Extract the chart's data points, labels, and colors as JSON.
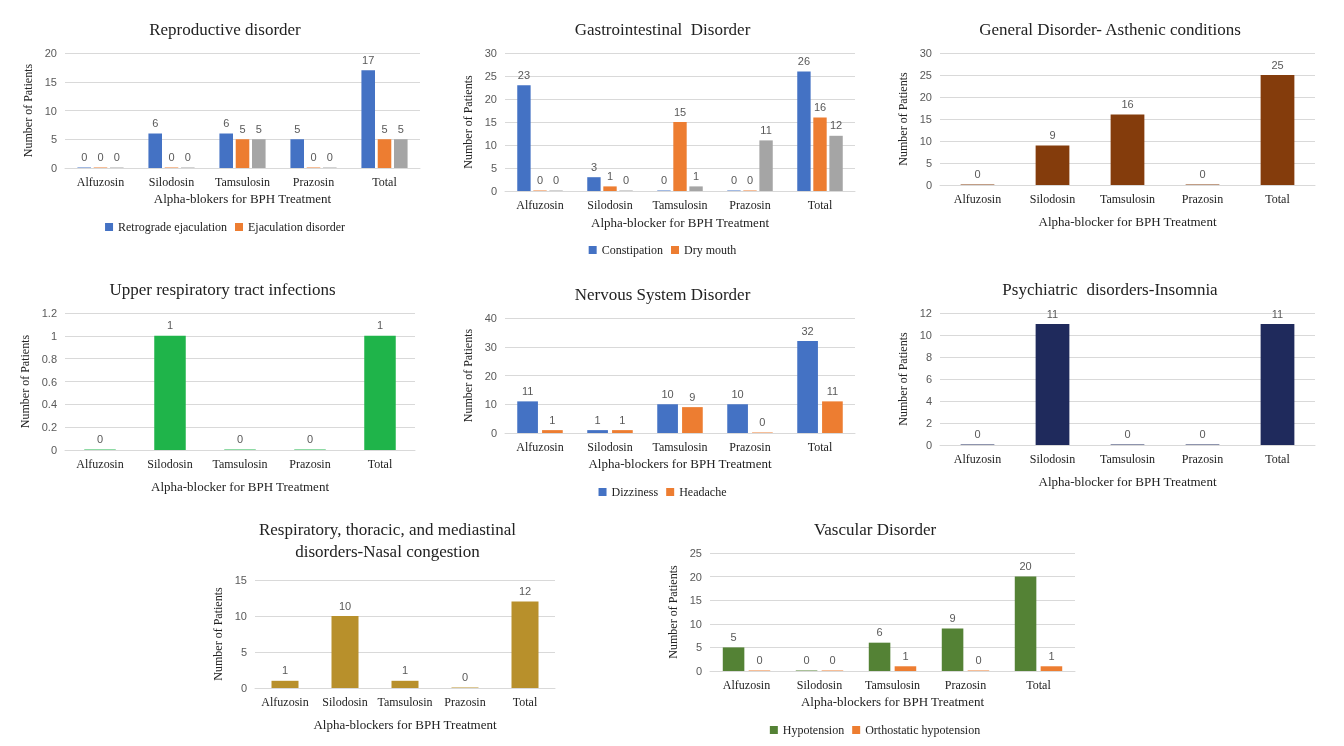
{
  "chart_data": [
    {
      "type": "bar",
      "title": "Reproductive disorder",
      "xlabel": "Alpha-blokers for BPH Treatment",
      "ylabel": "Number of Patients",
      "categories": [
        "Alfuzosin",
        "Silodosin",
        "Tamsulosin",
        "Prazosin",
        "Total"
      ],
      "series": [
        {
          "name": "Retrograde ejaculation",
          "color": "#4472c4",
          "values": [
            0,
            6,
            6,
            5,
            17
          ]
        },
        {
          "name": "Ejaculation disorder",
          "color": "#ed7d31",
          "values": [
            0,
            0,
            5,
            0,
            5
          ]
        },
        {
          "color": "#a5a5a5",
          "values": [
            0,
            0,
            5,
            0,
            5
          ]
        }
      ],
      "ylim": [
        0,
        20
      ],
      "yticks": [
        0,
        5,
        10,
        15,
        20
      ],
      "grid": "y",
      "legend": "bottom",
      "data_labels": true
    },
    {
      "type": "bar",
      "title": "Gastrointestinal  Disorder",
      "xlabel": "Alpha-blocker for BPH Treatment",
      "ylabel": "Number of Patients",
      "categories": [
        "Alfuzosin",
        "Silodosin",
        "Tamsulosin",
        "Prazosin",
        "Total"
      ],
      "series": [
        {
          "name": "Constipation",
          "color": "#4472c4",
          "values": [
            23,
            3,
            0,
            0,
            26
          ]
        },
        {
          "name": "Dry mouth",
          "color": "#ed7d31",
          "values": [
            0,
            1,
            15,
            0,
            16
          ]
        },
        {
          "color": "#a5a5a5",
          "values": [
            0,
            0,
            1,
            11,
            12
          ]
        }
      ],
      "ylim": [
        0,
        30
      ],
      "yticks": [
        0,
        5,
        10,
        15,
        20,
        25,
        30
      ],
      "grid": "y",
      "legend": "bottom",
      "data_labels": true
    },
    {
      "type": "bar",
      "title": "General Disorder- Asthenic conditions",
      "xlabel": "Alpha-blocker for BPH Treatment",
      "ylabel": "Number of Patients",
      "categories": [
        "Alfuzosin",
        "Silodosin",
        "Tamsulosin",
        "Prazosin",
        "Total"
      ],
      "values": [
        0,
        9,
        16,
        0,
        25
      ],
      "color": "#843c0c",
      "ylim": [
        0,
        30
      ],
      "yticks": [
        0,
        5,
        10,
        15,
        20,
        25,
        30
      ],
      "grid": "y",
      "data_labels": true
    },
    {
      "type": "bar",
      "title": "Upper respiratory tract infections",
      "xlabel": "Alpha-blocker for BPH Treatment",
      "ylabel": "Number of Patients",
      "categories": [
        "Alfuzosin",
        "Silodosin",
        "Tamsulosin",
        "Prazosin",
        "Total"
      ],
      "values": [
        0,
        1,
        0,
        0,
        1
      ],
      "color": "#1fb44a",
      "ylim": [
        0,
        1.2
      ],
      "yticks": [
        0,
        0.2,
        0.4,
        0.6,
        0.8,
        1,
        1.2
      ],
      "grid": "y",
      "data_labels": true
    },
    {
      "type": "bar",
      "title": "Nervous System Disorder",
      "xlabel": "Alpha-blockers for BPH Treatment",
      "ylabel": "Number of Patients",
      "categories": [
        "Alfuzosin",
        "Silodosin",
        "Tamsulosin",
        "Prazosin",
        "Total"
      ],
      "series": [
        {
          "name": "Dizziness",
          "color": "#4472c4",
          "values": [
            11,
            1,
            10,
            10,
            32
          ]
        },
        {
          "name": "Headache",
          "color": "#ed7d31",
          "values": [
            1,
            1,
            9,
            0,
            11
          ]
        }
      ],
      "ylim": [
        0,
        40
      ],
      "yticks": [
        0,
        10,
        20,
        30,
        40
      ],
      "grid": "y",
      "legend": "bottom",
      "data_labels": true
    },
    {
      "type": "bar",
      "title": "Psychiatric  disorders-Insomnia",
      "xlabel": "Alpha-blocker for BPH Treatment",
      "ylabel": "Number of Patients",
      "categories": [
        "Alfuzosin",
        "Silodosin",
        "Tamsulosin",
        "Prazosin",
        "Total"
      ],
      "values": [
        0,
        11,
        0,
        0,
        11
      ],
      "color": "#1f2a5c",
      "ylim": [
        0,
        12
      ],
      "yticks": [
        0,
        2,
        4,
        6,
        8,
        10,
        12
      ],
      "grid": "y",
      "data_labels": true
    },
    {
      "type": "bar",
      "title": "Respiratory, thoracic, and mediastinal\ndisorders-Nasal congestion",
      "xlabel": "Alpha-blockers for BPH Treatment",
      "ylabel": "Number of Patients",
      "categories": [
        "Alfuzosin",
        "Silodosin",
        "Tamsulosin",
        "Prazosin",
        "Total"
      ],
      "values": [
        1,
        10,
        1,
        0,
        12
      ],
      "color": "#b8902b",
      "ylim": [
        0,
        15
      ],
      "yticks": [
        0,
        5,
        10,
        15
      ],
      "grid": "y",
      "data_labels": true
    },
    {
      "type": "bar",
      "title": "Vascular Disorder",
      "xlabel": "Alpha-blockers for BPH Treatment",
      "ylabel": "Number of Patients",
      "categories": [
        "Alfuzosin",
        "Silodosin",
        "Tamsulosin",
        "Prazosin",
        "Total"
      ],
      "series": [
        {
          "name": "Hypotension",
          "color": "#548235",
          "values": [
            5,
            0,
            6,
            9,
            20
          ]
        },
        {
          "name": "Orthostatic hypotension",
          "color": "#ed7d31",
          "values": [
            0,
            0,
            1,
            0,
            1
          ]
        }
      ],
      "ylim": [
        0,
        25
      ],
      "yticks": [
        0,
        5,
        10,
        15,
        20,
        25
      ],
      "grid": "y",
      "legend": "bottom",
      "data_labels": true
    }
  ]
}
